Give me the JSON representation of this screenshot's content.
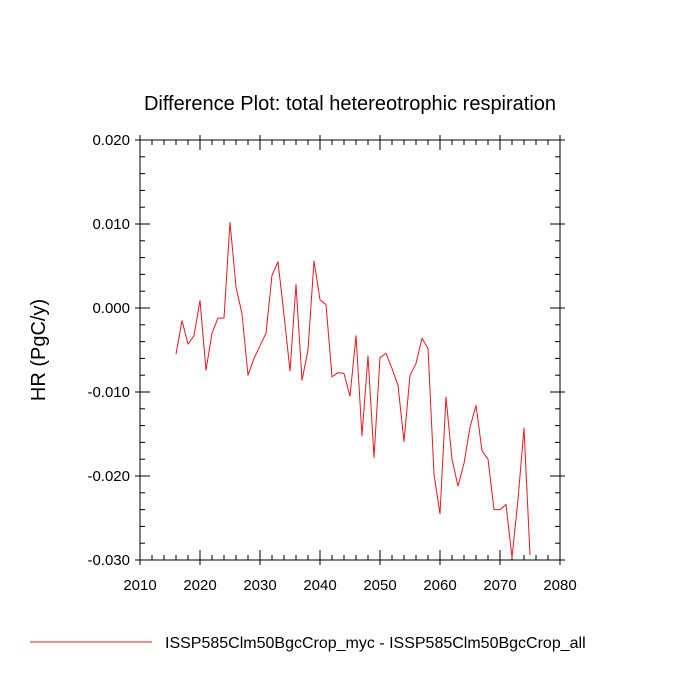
{
  "chart_data": {
    "type": "line",
    "title": "Difference Plot: total hetereotrophic respiration",
    "xlabel": "",
    "ylabel": "HR  (PgC/y)",
    "xlim": [
      2010,
      2080
    ],
    "ylim": [
      -0.03,
      0.02
    ],
    "xticks": [
      2010,
      2020,
      2030,
      2040,
      2050,
      2060,
      2070,
      2080
    ],
    "xtick_labels": [
      "2010",
      "2020",
      "2030",
      "2040",
      "2050",
      "2060",
      "2070",
      "2080"
    ],
    "yticks": [
      -0.03,
      -0.02,
      -0.01,
      0.0,
      0.01,
      0.02
    ],
    "ytick_labels": [
      "-0.030",
      "-0.020",
      "-0.010",
      "0.000",
      "0.010",
      "0.020"
    ],
    "grid": false,
    "legend_position": "bottom",
    "series": [
      {
        "name": "ISSP585Clm50BgcCrop_myc - ISSP585Clm50BgcCrop_all",
        "color": "#e8191e",
        "x": [
          2016,
          2017,
          2018,
          2019,
          2020,
          2021,
          2022,
          2023,
          2024,
          2025,
          2026,
          2027,
          2028,
          2029,
          2030,
          2031,
          2032,
          2033,
          2034,
          2035,
          2036,
          2037,
          2038,
          2039,
          2040,
          2041,
          2042,
          2043,
          2044,
          2045,
          2046,
          2047,
          2048,
          2049,
          2050,
          2051,
          2052,
          2053,
          2054,
          2055,
          2056,
          2057,
          2058,
          2059,
          2060,
          2061,
          2062,
          2063,
          2064,
          2065,
          2066,
          2067,
          2068,
          2069,
          2070,
          2071,
          2072,
          2073,
          2074,
          2075
        ],
        "y": [
          -0.0055,
          -0.0015,
          -0.0043,
          -0.0033,
          0.0009,
          -0.0074,
          -0.003,
          -0.0012,
          -0.0012,
          0.0102,
          0.0025,
          -0.0007,
          -0.008,
          -0.006,
          -0.0045,
          -0.003,
          0.0039,
          0.0055,
          -0.0008,
          -0.0075,
          0.0028,
          -0.0086,
          -0.005,
          0.0056,
          0.001,
          0.0004,
          -0.0082,
          -0.0077,
          -0.0078,
          -0.0105,
          -0.0033,
          -0.0152,
          -0.0057,
          -0.0178,
          -0.0059,
          -0.0054,
          -0.0072,
          -0.0092,
          -0.0159,
          -0.008,
          -0.0066,
          -0.0036,
          -0.0048,
          -0.0198,
          -0.0245,
          -0.0106,
          -0.018,
          -0.0212,
          -0.0185,
          -0.0142,
          -0.0116,
          -0.017,
          -0.018,
          -0.024,
          -0.024,
          -0.0234,
          -0.0297,
          -0.0228,
          -0.0143,
          -0.0294
        ]
      }
    ]
  }
}
